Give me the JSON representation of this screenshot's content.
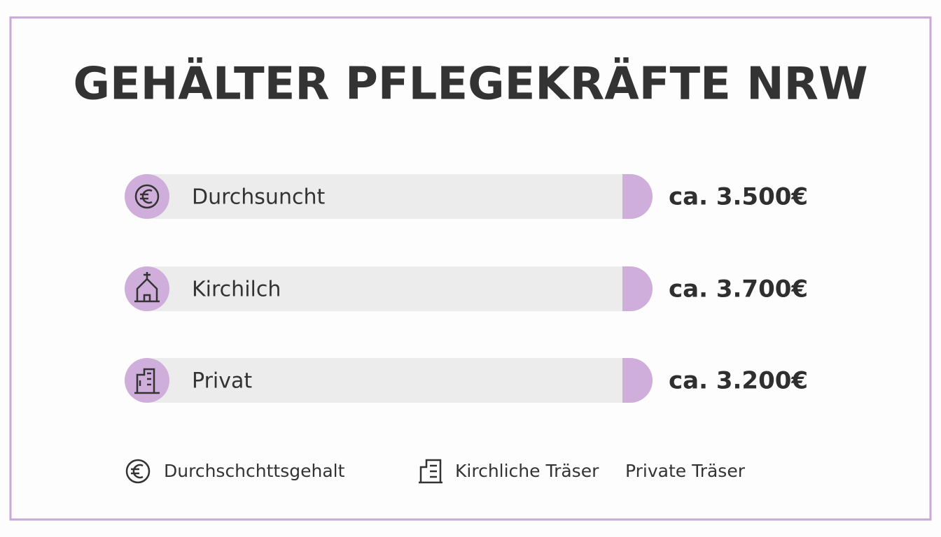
{
  "title": "GEHÄLTER PFLEGEKRÄFTE NRW",
  "rows": [
    {
      "label": "Durchsuncht",
      "value": "ca. 3.500€"
    },
    {
      "label": "Kirchilch",
      "value": "ca. 3.700€"
    },
    {
      "label": "Privat",
      "value": "ca. 3.200€"
    }
  ],
  "legend": [
    "Durchschchttsgehalt",
    "Kirchliche Träser",
    "Private Träser"
  ]
}
